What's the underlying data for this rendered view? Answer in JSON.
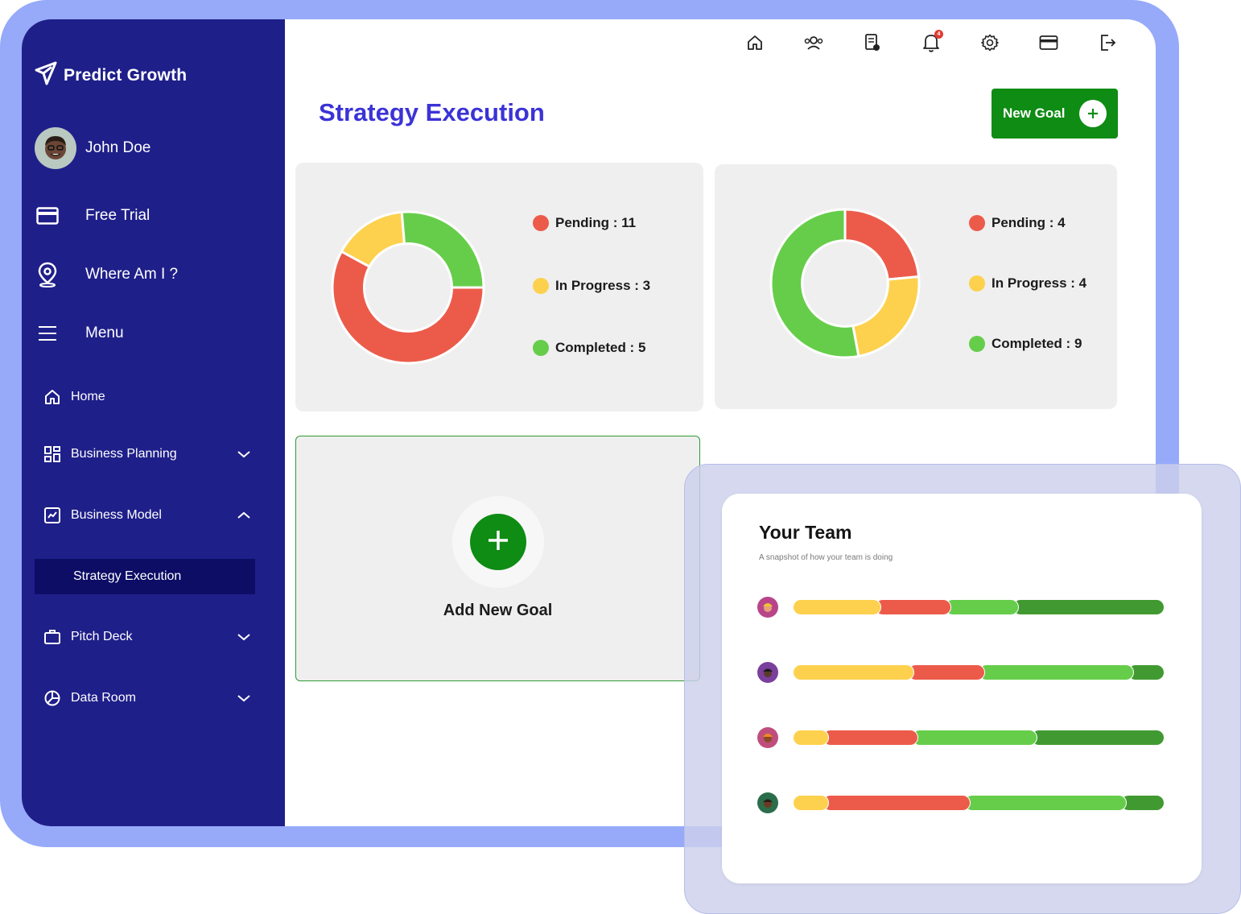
{
  "app": {
    "name": "Predict Growth"
  },
  "user": {
    "name": "John Doe"
  },
  "sidebar": {
    "top_items": [
      {
        "label": "Free Trial",
        "icon": "credit-card-icon"
      },
      {
        "label": "Where Am I ?",
        "icon": "location-pin-icon"
      },
      {
        "label": "Menu",
        "icon": "hamburger-menu-icon"
      }
    ],
    "nav": [
      {
        "label": "Home",
        "icon": "home-icon"
      },
      {
        "label": "Business Planning",
        "icon": "dashboard-grid-icon",
        "expanded": false
      },
      {
        "label": "Business Model",
        "icon": "line-chart-icon",
        "expanded": true
      },
      {
        "label": "Pitch Deck",
        "icon": "briefcase-icon",
        "expanded": false
      },
      {
        "label": "Data Room",
        "icon": "pie-chart-icon",
        "expanded": false
      }
    ],
    "active_sub_item": "Strategy Execution"
  },
  "topbar": {
    "icons": [
      "home-icon",
      "team-icon",
      "report-icon",
      "bell-icon",
      "gear-icon",
      "credit-card-icon",
      "logout-icon"
    ],
    "notification_count": "4"
  },
  "page": {
    "title": "Strategy Execution"
  },
  "new_goal_button": {
    "label": "New Goal"
  },
  "colors": {
    "pending": "#ec5b4a",
    "in_progress": "#fdd14e",
    "completed": "#66cd4a",
    "completed_dark": "#419a31",
    "accent": "#0e8c14",
    "sidebar": "#1f1f8a",
    "title": "#3b33d6"
  },
  "chart_data": [
    {
      "type": "pie",
      "categories": [
        "Pending",
        "In Progress",
        "Completed"
      ],
      "values": [
        11,
        3,
        5
      ],
      "legend": [
        "Pending : 11",
        "In Progress : 3",
        "Completed : 5"
      ]
    },
    {
      "type": "pie",
      "categories": [
        "Pending",
        "In Progress",
        "Completed"
      ],
      "values": [
        4,
        4,
        9
      ],
      "legend": [
        "Pending : 4",
        "In Progress : 4",
        "Completed : 9"
      ]
    }
  ],
  "add_goal": {
    "label": "Add New Goal"
  },
  "team": {
    "title": "Your Team",
    "subtitle": "A snapshot of how your team is doing",
    "members": [
      {
        "segments": [
          0.22,
          0.19,
          0.18,
          0.41
        ],
        "avatar_color": "#b8458a"
      },
      {
        "segments": [
          0.31,
          0.19,
          0.4,
          0.1
        ],
        "avatar_color": "#7b3f9c"
      },
      {
        "segments": [
          0.08,
          0.24,
          0.32,
          0.36
        ],
        "avatar_color": "#c04e7c"
      },
      {
        "segments": [
          0.08,
          0.38,
          0.42,
          0.12
        ],
        "avatar_color": "#2b6d4a"
      }
    ]
  }
}
